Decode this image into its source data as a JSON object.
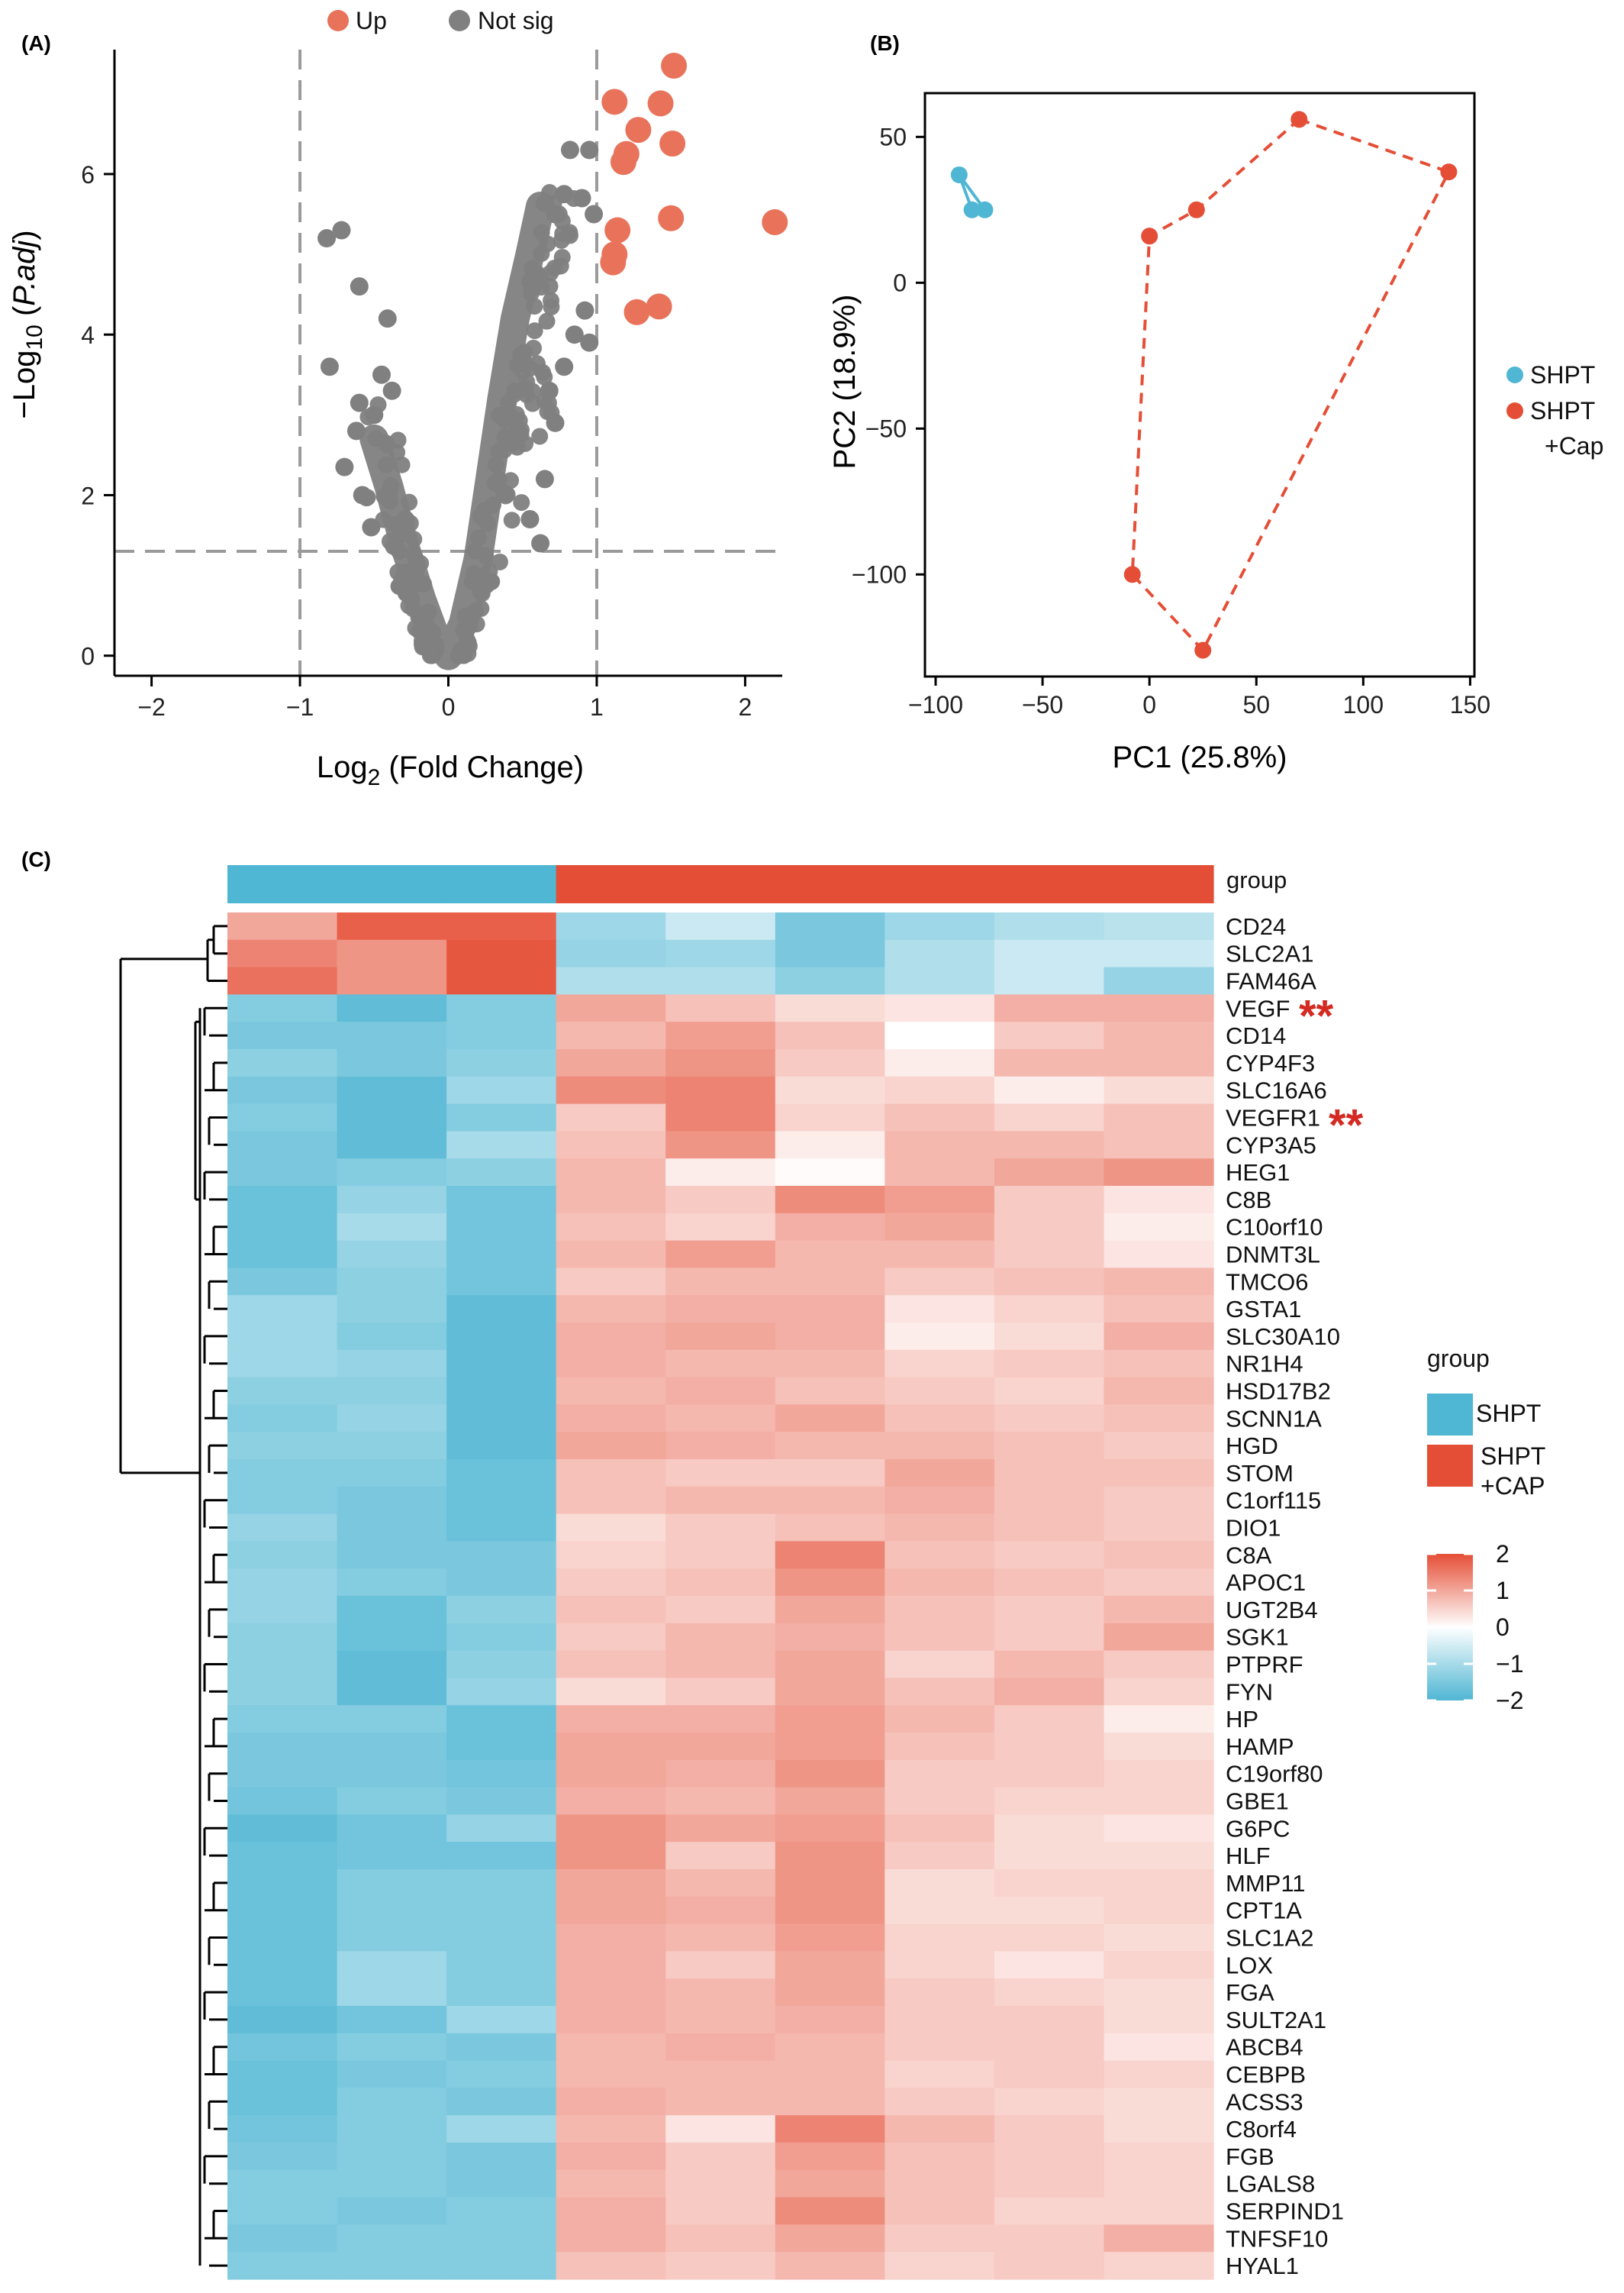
{
  "panel_labels": {
    "a": "(A)",
    "b": "(B)",
    "c": "(C)"
  },
  "colors": {
    "up": "#e8735a",
    "notsig": "#808080",
    "shpt": "#4fb6d3",
    "cap": "#e54e36",
    "guide": "#9a9a9a"
  },
  "chart_data": [
    {
      "type": "scatter",
      "panel": "A",
      "xlabel": "Log",
      "xlabel_sub": "2",
      "xlabel_rest": " (Fold Change)",
      "ylabel_prefix": "−Log",
      "ylabel_sub": "10",
      "ylabel_open": " (",
      "ylabel_italic": "P.adj",
      "ylabel_close": ")",
      "xlim": [
        -2.25,
        2.25
      ],
      "ylim": [
        -0.25,
        7.55
      ],
      "xticks": [
        -2,
        -1,
        0,
        1,
        2
      ],
      "yticks": [
        0,
        2,
        4,
        6
      ],
      "xtick_labels": [
        "−2",
        "−1",
        "0",
        "1",
        "2"
      ],
      "ytick_labels": [
        "0",
        "2",
        "4",
        "6"
      ],
      "thresholds": {
        "x": [
          -1,
          1
        ],
        "y": 1.3
      },
      "legend": [
        {
          "label": "Up",
          "color": "#e8735a"
        },
        {
          "label": "Not sig",
          "color": "#808080"
        }
      ],
      "up_points": [
        {
          "x": 1.52,
          "y": 7.35
        },
        {
          "x": 1.12,
          "y": 6.9
        },
        {
          "x": 1.28,
          "y": 6.55
        },
        {
          "x": 1.43,
          "y": 6.88
        },
        {
          "x": 1.51,
          "y": 6.38
        },
        {
          "x": 1.2,
          "y": 6.25
        },
        {
          "x": 1.18,
          "y": 6.15
        },
        {
          "x": 1.5,
          "y": 5.45
        },
        {
          "x": 2.2,
          "y": 5.4
        },
        {
          "x": 1.14,
          "y": 5.3
        },
        {
          "x": 1.12,
          "y": 5.0
        },
        {
          "x": 1.11,
          "y": 4.9
        },
        {
          "x": 1.42,
          "y": 4.35
        },
        {
          "x": 1.27,
          "y": 4.28
        }
      ],
      "notsig_points": [
        {
          "x": -0.72,
          "y": 5.3
        },
        {
          "x": -0.82,
          "y": 5.2
        },
        {
          "x": -0.6,
          "y": 4.6
        },
        {
          "x": -0.41,
          "y": 4.2
        },
        {
          "x": -0.8,
          "y": 3.6
        },
        {
          "x": -0.45,
          "y": 3.5
        },
        {
          "x": -0.38,
          "y": 3.3
        },
        {
          "x": -0.6,
          "y": 3.15
        },
        {
          "x": -0.5,
          "y": 3.0
        },
        {
          "x": -0.62,
          "y": 2.8
        },
        {
          "x": 0.82,
          "y": 6.3
        },
        {
          "x": 0.95,
          "y": 6.3
        },
        {
          "x": 0.9,
          "y": 5.7
        },
        {
          "x": 0.78,
          "y": 5.75
        },
        {
          "x": 0.72,
          "y": 5.5
        },
        {
          "x": 0.98,
          "y": 5.5
        },
        {
          "x": 0.92,
          "y": 4.3
        },
        {
          "x": 0.85,
          "y": 4.0
        },
        {
          "x": 0.95,
          "y": 3.9
        },
        {
          "x": 0.78,
          "y": 3.6
        },
        {
          "x": 0.68,
          "y": 3.3
        },
        {
          "x": 0.72,
          "y": 2.9
        },
        {
          "x": 0.65,
          "y": 2.2
        },
        {
          "x": -0.58,
          "y": 2.0
        },
        {
          "x": -0.7,
          "y": 2.35
        },
        {
          "x": -0.52,
          "y": 1.6
        },
        {
          "x": 0.55,
          "y": 1.7
        },
        {
          "x": 0.62,
          "y": 1.4
        }
      ],
      "cloud_left": [
        {
          "x": -0.5,
          "y": 2.7
        },
        {
          "x": -0.4,
          "y": 2.1
        },
        {
          "x": -0.3,
          "y": 1.4
        },
        {
          "x": -0.18,
          "y": 0.7
        },
        {
          "x": -0.08,
          "y": 0.2
        },
        {
          "x": 0,
          "y": 0
        }
      ],
      "cloud_right": [
        {
          "x": 0,
          "y": 0
        },
        {
          "x": 0.1,
          "y": 0.4
        },
        {
          "x": 0.2,
          "y": 1.2
        },
        {
          "x": 0.28,
          "y": 2.2
        },
        {
          "x": 0.36,
          "y": 3.2
        },
        {
          "x": 0.45,
          "y": 4.2
        },
        {
          "x": 0.55,
          "y": 5.0
        },
        {
          "x": 0.62,
          "y": 5.6
        }
      ]
    },
    {
      "type": "scatter",
      "panel": "B",
      "xlabel": "PC1 (25.8%)",
      "ylabel": "PC2 (18.9%)",
      "xlim": [
        -105,
        152
      ],
      "ylim": [
        -135,
        65
      ],
      "xticks": [
        -100,
        -50,
        0,
        50,
        100,
        150
      ],
      "yticks": [
        -100,
        -50,
        0,
        50
      ],
      "xtick_labels": [
        "−100",
        "−50",
        "0",
        "50",
        "100",
        "150"
      ],
      "ytick_labels": [
        "−100",
        "−50",
        "0",
        "50"
      ],
      "series": [
        {
          "name": "SHPT",
          "color": "#4fb6d3",
          "points": [
            {
              "x": -89,
              "y": 37
            },
            {
              "x": -83,
              "y": 25
            },
            {
              "x": -77,
              "y": 25
            }
          ],
          "hull": [
            {
              "x": -89,
              "y": 37
            },
            {
              "x": -77,
              "y": 25
            },
            {
              "x": -83,
              "y": 25
            }
          ]
        },
        {
          "name": "SHPT +Cap",
          "color": "#e54e36",
          "points": [
            {
              "x": 70,
              "y": 56
            },
            {
              "x": 140,
              "y": 38
            },
            {
              "x": 22,
              "y": 25
            },
            {
              "x": 0,
              "y": 16
            },
            {
              "x": -8,
              "y": -100
            },
            {
              "x": 25,
              "y": -126
            }
          ],
          "hull": [
            {
              "x": 70,
              "y": 56
            },
            {
              "x": 140,
              "y": 38
            },
            {
              "x": 25,
              "y": -126
            },
            {
              "x": -8,
              "y": -100
            },
            {
              "x": 0,
              "y": 16
            },
            {
              "x": 22,
              "y": 25
            }
          ]
        }
      ],
      "legend": [
        {
          "label": "SHPT",
          "line2": ""
        },
        {
          "label": "SHPT",
          "line2": "+Cap"
        }
      ]
    },
    {
      "type": "heatmap",
      "panel": "C",
      "annotation_label": "group",
      "groups": [
        "SHPT",
        "SHPT",
        "SHPT",
        "SHPT+CAP",
        "SHPT+CAP",
        "SHPT+CAP",
        "SHPT+CAP",
        "SHPT+CAP",
        "SHPT+CAP"
      ],
      "genes": [
        "CD24",
        "SLC2A1",
        "FAM46A",
        "VEGF",
        "CD14",
        "CYP4F3",
        "SLC16A6",
        "VEGFR1",
        "CYP3A5",
        "HEG1",
        "C8B",
        "C10orf10",
        "DNMT3L",
        "TMCO6",
        "GSTA1",
        "SLC30A10",
        "NR1H4",
        "HSD17B2",
        "SCNN1A",
        "HGD",
        "STOM",
        "C1orf115",
        "DIO1",
        "C8A",
        "APOC1",
        "UGT2B4",
        "SGK1",
        "PTPRF",
        "FYN",
        "HP",
        "HAMP",
        "C19orf80",
        "GBE1",
        "G6PC",
        "HLF",
        "MMP11",
        "CPT1A",
        "SLC1A2",
        "LOX",
        "FGA",
        "SULT2A1",
        "ABCB4",
        "CEBPB",
        "ACSS3",
        "C8orf4",
        "FGB",
        "LGALS8",
        "SERPIND1",
        "TNFSF10",
        "HYAL1"
      ],
      "starred": {
        "VEGF": "**",
        "VEGFR1": "**"
      },
      "values": [
        [
          1.0,
          1.8,
          1.8,
          -1.1,
          -0.6,
          -1.5,
          -1.1,
          -0.9,
          -0.8
        ],
        [
          1.4,
          1.2,
          1.9,
          -1.2,
          -1.1,
          -1.5,
          -0.9,
          -0.6,
          -0.6
        ],
        [
          1.6,
          1.2,
          1.9,
          -0.9,
          -0.9,
          -1.3,
          -0.9,
          -0.6,
          -1.2
        ],
        [
          -1.4,
          -1.8,
          -1.4,
          1.0,
          0.7,
          0.4,
          0.3,
          0.9,
          0.9
        ],
        [
          -1.5,
          -1.5,
          -1.4,
          0.8,
          1.1,
          0.7,
          0.0,
          0.6,
          0.8
        ],
        [
          -1.3,
          -1.5,
          -1.3,
          1.0,
          1.2,
          0.6,
          0.2,
          0.8,
          0.8
        ],
        [
          -1.5,
          -1.8,
          -1.1,
          1.3,
          1.4,
          0.4,
          0.5,
          0.2,
          0.4
        ],
        [
          -1.4,
          -1.8,
          -1.4,
          0.6,
          1.4,
          0.5,
          0.7,
          0.5,
          0.7
        ],
        [
          -1.5,
          -1.8,
          -1.0,
          0.7,
          1.2,
          0.2,
          0.8,
          0.8,
          0.7
        ],
        [
          -1.5,
          -1.4,
          -1.3,
          0.8,
          0.2,
          0.05,
          0.8,
          1.0,
          1.2
        ],
        [
          -1.7,
          -1.2,
          -1.6,
          0.8,
          0.6,
          1.3,
          1.1,
          0.6,
          0.3
        ],
        [
          -1.7,
          -1.0,
          -1.6,
          0.7,
          0.5,
          0.9,
          1.0,
          0.6,
          0.2
        ],
        [
          -1.7,
          -1.2,
          -1.6,
          0.8,
          1.1,
          0.8,
          0.8,
          0.6,
          0.3
        ],
        [
          -1.5,
          -1.3,
          -1.6,
          0.6,
          0.8,
          0.8,
          0.6,
          0.7,
          0.8
        ],
        [
          -1.1,
          -1.3,
          -1.8,
          0.8,
          0.9,
          0.9,
          0.3,
          0.5,
          0.7
        ],
        [
          -1.1,
          -1.4,
          -1.8,
          0.9,
          1.0,
          0.9,
          0.2,
          0.4,
          0.9
        ],
        [
          -1.1,
          -1.2,
          -1.8,
          0.9,
          0.8,
          0.8,
          0.5,
          0.6,
          0.7
        ],
        [
          -1.3,
          -1.3,
          -1.8,
          0.8,
          0.9,
          0.7,
          0.6,
          0.5,
          0.8
        ],
        [
          -1.4,
          -1.2,
          -1.8,
          0.9,
          0.8,
          1.0,
          0.7,
          0.6,
          0.7
        ],
        [
          -1.3,
          -1.3,
          -1.8,
          1.0,
          0.9,
          0.8,
          0.8,
          0.7,
          0.6
        ],
        [
          -1.4,
          -1.4,
          -1.7,
          0.7,
          0.6,
          0.6,
          1.0,
          0.7,
          0.7
        ],
        [
          -1.4,
          -1.5,
          -1.7,
          0.7,
          0.8,
          0.8,
          0.9,
          0.7,
          0.6
        ],
        [
          -1.2,
          -1.5,
          -1.7,
          0.4,
          0.6,
          0.7,
          0.8,
          0.7,
          0.6
        ],
        [
          -1.3,
          -1.5,
          -1.5,
          0.5,
          0.6,
          1.4,
          0.7,
          0.6,
          0.7
        ],
        [
          -1.2,
          -1.4,
          -1.5,
          0.6,
          0.7,
          1.2,
          0.8,
          0.7,
          0.6
        ],
        [
          -1.2,
          -1.7,
          -1.3,
          0.7,
          0.6,
          1.0,
          0.7,
          0.6,
          0.8
        ],
        [
          -1.3,
          -1.7,
          -1.4,
          0.6,
          0.8,
          0.9,
          0.7,
          0.6,
          1.0
        ],
        [
          -1.3,
          -1.8,
          -1.3,
          0.7,
          0.8,
          1.0,
          0.5,
          0.8,
          0.6
        ],
        [
          -1.3,
          -1.8,
          -1.2,
          0.4,
          0.6,
          1.0,
          0.7,
          0.9,
          0.5
        ],
        [
          -1.4,
          -1.4,
          -1.7,
          0.9,
          0.9,
          1.1,
          0.8,
          0.6,
          0.2
        ],
        [
          -1.5,
          -1.5,
          -1.7,
          1.0,
          1.0,
          1.1,
          0.7,
          0.6,
          0.4
        ],
        [
          -1.5,
          -1.5,
          -1.6,
          1.0,
          0.9,
          1.2,
          0.6,
          0.6,
          0.5
        ],
        [
          -1.6,
          -1.4,
          -1.5,
          0.9,
          0.8,
          1.0,
          0.6,
          0.5,
          0.5
        ],
        [
          -1.8,
          -1.6,
          -1.2,
          1.2,
          1.0,
          1.1,
          0.7,
          0.4,
          0.3
        ],
        [
          -1.7,
          -1.6,
          -1.6,
          1.2,
          0.6,
          1.2,
          0.6,
          0.4,
          0.4
        ],
        [
          -1.7,
          -1.4,
          -1.4,
          1.0,
          0.8,
          1.2,
          0.4,
          0.5,
          0.5
        ],
        [
          -1.7,
          -1.4,
          -1.4,
          1.0,
          0.9,
          1.2,
          0.4,
          0.4,
          0.5
        ],
        [
          -1.7,
          -1.4,
          -1.4,
          0.9,
          0.8,
          1.1,
          0.5,
          0.5,
          0.4
        ],
        [
          -1.7,
          -1.1,
          -1.4,
          0.9,
          0.6,
          1.0,
          0.5,
          0.3,
          0.5
        ],
        [
          -1.7,
          -1.1,
          -1.4,
          0.9,
          0.8,
          1.0,
          0.6,
          0.5,
          0.4
        ],
        [
          -1.8,
          -1.6,
          -1.1,
          0.9,
          0.8,
          0.9,
          0.6,
          0.6,
          0.4
        ],
        [
          -1.6,
          -1.4,
          -1.5,
          0.8,
          0.9,
          0.8,
          0.6,
          0.6,
          0.3
        ],
        [
          -1.7,
          -1.5,
          -1.4,
          0.8,
          0.8,
          0.8,
          0.5,
          0.6,
          0.5
        ],
        [
          -1.7,
          -1.4,
          -1.5,
          0.9,
          0.8,
          0.8,
          0.6,
          0.5,
          0.4
        ],
        [
          -1.6,
          -1.4,
          -1.1,
          0.8,
          0.3,
          1.4,
          0.8,
          0.6,
          0.4
        ],
        [
          -1.5,
          -1.4,
          -1.5,
          0.9,
          0.6,
          1.1,
          0.7,
          0.6,
          0.5
        ],
        [
          -1.4,
          -1.4,
          -1.5,
          0.8,
          0.6,
          1.0,
          0.7,
          0.6,
          0.5
        ],
        [
          -1.4,
          -1.5,
          -1.4,
          0.9,
          0.6,
          1.3,
          0.7,
          0.5,
          0.5
        ],
        [
          -1.5,
          -1.4,
          -1.4,
          0.9,
          0.7,
          1.0,
          0.6,
          0.6,
          0.9
        ],
        [
          -1.4,
          -1.4,
          -1.4,
          0.7,
          0.6,
          0.8,
          0.5,
          0.6,
          0.5
        ]
      ],
      "legend": {
        "title": "group",
        "items": [
          {
            "label": "SHPT",
            "line2": ""
          },
          {
            "label": "SHPT",
            "line2": "+CAP"
          }
        ],
        "scale_ticks": [
          2,
          1,
          0,
          -1,
          -2
        ],
        "scale_tick_labels": [
          "2",
          "1",
          "0",
          "−1",
          "−2"
        ]
      }
    }
  ]
}
